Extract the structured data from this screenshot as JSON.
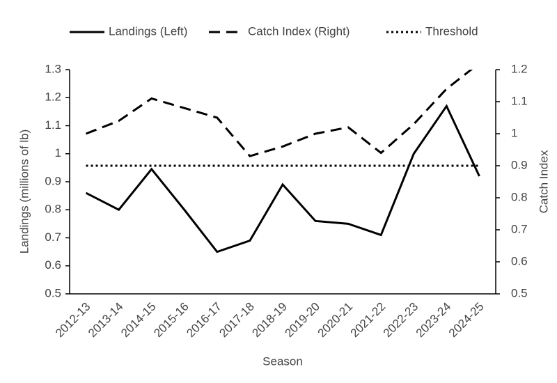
{
  "chart_data": {
    "type": "line",
    "x_label": "Season",
    "y_label": "Landings (millions of lb)",
    "y2_label": "Catch Index",
    "categories": [
      "2012-13",
      "2013-14",
      "2014-15",
      "2015-16",
      "2016-17",
      "2017-18",
      "2018-19",
      "2019-20",
      "2020-21",
      "2021-22",
      "2022-23",
      "2023-24",
      "2024-25"
    ],
    "series": [
      {
        "name": "Landings (Left)",
        "color": "#000000",
        "style": "solid",
        "axis": "y",
        "values": [
          0.86,
          0.8,
          0.945,
          0.8,
          0.65,
          0.69,
          0.89,
          0.76,
          0.75,
          0.71,
          1.0,
          1.17,
          0.92
        ]
      },
      {
        "name": "Catch Index (Right)",
        "color": "#000000",
        "style": "dashed",
        "axis": "y2",
        "values": [
          1.0,
          1.04,
          1.11,
          1.08,
          1.05,
          0.93,
          0.96,
          1.0,
          1.02,
          0.94,
          1.03,
          1.14,
          1.22
        ]
      },
      {
        "name": "Threshold",
        "color": "#000000",
        "style": "dotted",
        "axis": "y2",
        "values": [
          0.9,
          0.9,
          0.9,
          0.9,
          0.9,
          0.9,
          0.9,
          0.9,
          0.9,
          0.9,
          0.9,
          0.9,
          0.9
        ]
      }
    ],
    "ylim": [
      0.5,
      1.3
    ],
    "yticks": [
      0.5,
      0.6,
      0.7,
      0.8,
      0.9,
      1,
      1.1,
      1.2,
      1.3
    ],
    "y2lim": [
      0.5,
      1.2
    ],
    "y2ticks": [
      0.5,
      0.6,
      0.7,
      0.8,
      0.9,
      1,
      1.1,
      1.2
    ],
    "grid": false,
    "legend": "top"
  }
}
